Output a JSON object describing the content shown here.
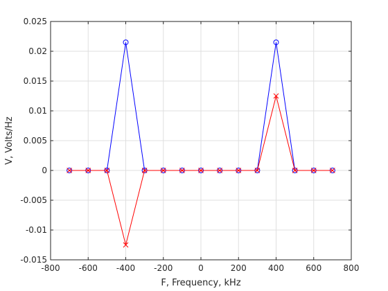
{
  "chart_data": {
    "type": "line",
    "title": "",
    "xlabel": "F, Frequency, kHz",
    "ylabel": "V, Volts/Hz",
    "xlim": [
      -800,
      800
    ],
    "ylim": [
      -0.015,
      0.025
    ],
    "grid": true,
    "xticks": [
      -800,
      -600,
      -400,
      -200,
      0,
      200,
      400,
      600,
      800
    ],
    "xtick_labels": [
      "-800",
      "-600",
      "-400",
      "-200",
      "0",
      "200",
      "400",
      "600",
      "800"
    ],
    "yticks": [
      -0.015,
      -0.01,
      -0.005,
      0,
      0.005,
      0.01,
      0.015,
      0.02,
      0.025
    ],
    "ytick_labels": [
      "-0.015",
      "-0.01",
      "-0.005",
      "0",
      "0.005",
      "0.01",
      "0.015",
      "0.02",
      "0.025"
    ],
    "x": [
      -700,
      -600,
      -500,
      -400,
      -300,
      -200,
      -100,
      0,
      100,
      200,
      300,
      400,
      500,
      600,
      700
    ],
    "series": [
      {
        "color": "#0000ff",
        "marker": "circle",
        "values": [
          0,
          0,
          0,
          0.0215,
          0,
          0,
          0,
          0,
          0,
          0,
          0,
          0.0215,
          0,
          0,
          0
        ]
      },
      {
        "color": "#ff0000",
        "marker": "x",
        "values": [
          0,
          0,
          0,
          -0.0125,
          0,
          0,
          0,
          0,
          0,
          0,
          0,
          0.0125,
          0,
          0,
          0
        ]
      }
    ]
  }
}
